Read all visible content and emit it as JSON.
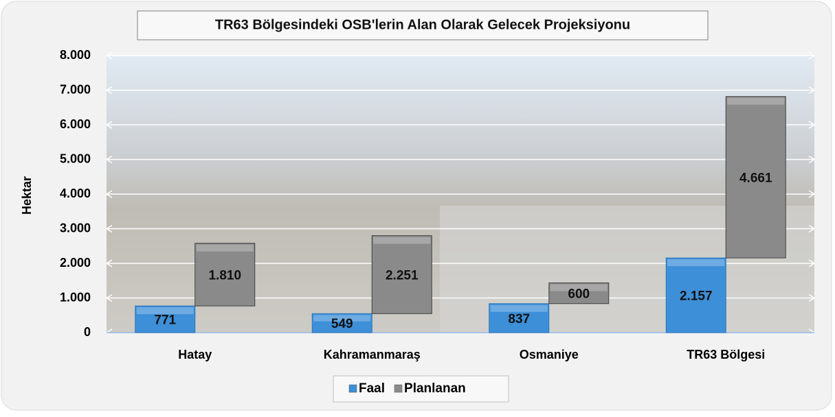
{
  "chart_data": {
    "type": "bar",
    "title": "TR63 Bölgesindeki OSB'lerin Alan Olarak Gelecek Projeksiyonu",
    "y_label": "Hektar",
    "categories": [
      "Hatay",
      "Kahramanmaraş",
      "Osmaniye",
      "TR63 Bölgesi"
    ],
    "series": [
      {
        "name": "Faal",
        "color": "#3d8fd8",
        "values": [
          771,
          549,
          837,
          2157
        ],
        "value_labels": [
          "771",
          "549",
          "837",
          "2.157"
        ]
      },
      {
        "name": "Planlanan",
        "color": "#8a8a8a",
        "stacked_on": "Faal",
        "values": [
          1810,
          2251,
          600,
          4661
        ],
        "value_labels": [
          "1.810",
          "2.251",
          "600",
          "4.661"
        ]
      }
    ],
    "ylim": [
      0,
      8000
    ],
    "yticks": [
      0,
      {
        "value": 1000,
        "label": "1.000"
      },
      {
        "value": 2000,
        "label": "2.000"
      },
      {
        "value": 3000,
        "label": "3.000"
      },
      {
        "value": 4000,
        "label": "4.000"
      },
      {
        "value": 5000,
        "label": "5.000"
      },
      {
        "value": 6000,
        "label": "6.000"
      },
      {
        "value": 7000,
        "label": "7.000"
      },
      {
        "value": 8000,
        "label": "8.000"
      }
    ],
    "grid": true,
    "legend": "bottom"
  }
}
